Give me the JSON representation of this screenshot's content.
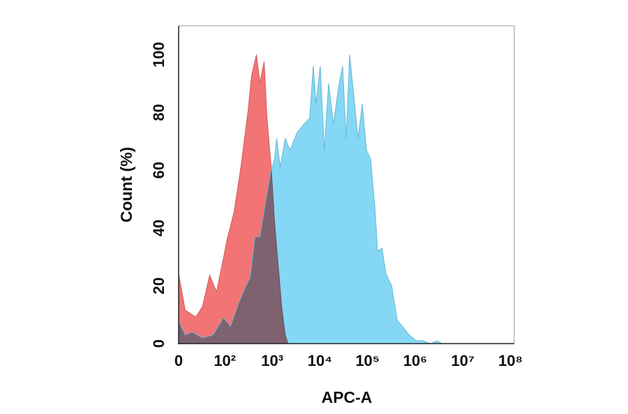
{
  "chart_data": {
    "type": "area",
    "xlabel": "APC-A",
    "ylabel": "Count  (%)",
    "xscale": "biexponential",
    "xlim": [
      0,
      120000000
    ],
    "ylim": [
      0,
      110
    ],
    "xticks": [
      0,
      {
        "value": 100,
        "label": "10²"
      },
      {
        "value": 1000,
        "label": "10³"
      },
      {
        "value": 10000,
        "label": "10⁴"
      },
      {
        "value": 100000,
        "label": "10⁵"
      },
      {
        "value": 1000000,
        "label": "10⁶"
      },
      {
        "value": 10000000,
        "label": "10⁷"
      },
      {
        "value": 100000000,
        "label": "10⁸"
      }
    ],
    "yticks": [
      0,
      20,
      40,
      60,
      80,
      100
    ],
    "series": [
      {
        "color": "#f26d6d",
        "x": [
          0,
          7,
          20,
          31,
          46,
          66,
          94,
          111,
          157,
          220,
          310,
          367,
          465,
          551,
          676,
          774,
          948,
          1120,
          1330,
          1580,
          1870,
          2140
        ],
        "values": [
          24.2,
          11.6,
          9.2,
          12.8,
          23.7,
          17.9,
          29.8,
          35.8,
          45.5,
          61.3,
          80.6,
          92.7,
          100,
          90.3,
          97.6,
          78.2,
          61.3,
          41.9,
          27.4,
          12.8,
          3.1,
          0
        ]
      },
      {
        "color": "#7dd6f5",
        "x": [
          0,
          7,
          15,
          31,
          55,
          94,
          132,
          186,
          262,
          343,
          435,
          551,
          724,
          917,
          1120,
          1240,
          1470,
          1870,
          2370,
          3320,
          4660,
          6110,
          7240,
          8290,
          10200,
          12400,
          15200,
          19300,
          25300,
          30000,
          35600,
          42100,
          49900,
          63300,
          77500,
          94900,
          116000,
          143000,
          163000,
          200000,
          245000,
          321000,
          421000,
          534000,
          749000,
          1050000,
          1480000,
          2070000,
          2910000,
          3690000
        ],
        "values": [
          8,
          3,
          4,
          2,
          3,
          9,
          6,
          13,
          19,
          23,
          37,
          37,
          49,
          59,
          64,
          71,
          61,
          71,
          67,
          73,
          76,
          78,
          96,
          83,
          96,
          67,
          90,
          76,
          90,
          96,
          71,
          100,
          88,
          71,
          83,
          67,
          64,
          47,
          32,
          33,
          24,
          20,
          8,
          6,
          3,
          1,
          1,
          0,
          1,
          0
        ]
      }
    ]
  }
}
